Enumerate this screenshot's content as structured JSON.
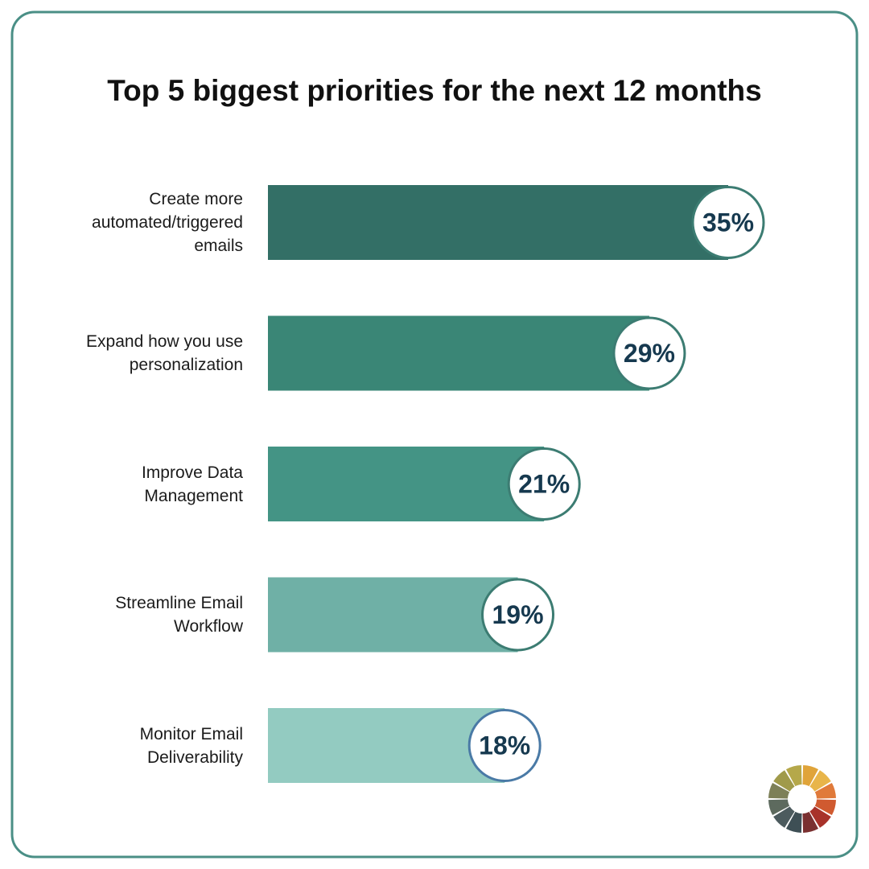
{
  "chart_data": {
    "type": "bar",
    "orientation": "horizontal",
    "title": "Top 5 biggest priorities for the next 12 months",
    "categories": [
      "Create more automated/triggered emails",
      "Expand how you use personalization",
      "Improve Data Management",
      "Streamline Email Workflow",
      "Monitor Email Deliverability"
    ],
    "values": [
      35,
      29,
      21,
      19,
      18
    ],
    "value_labels": [
      "35%",
      "29%",
      "21%",
      "19%",
      "18%"
    ],
    "colors": [
      "#336f66",
      "#3a8676",
      "#449485",
      "#6fb0a6",
      "#93cbc1"
    ]
  }
}
